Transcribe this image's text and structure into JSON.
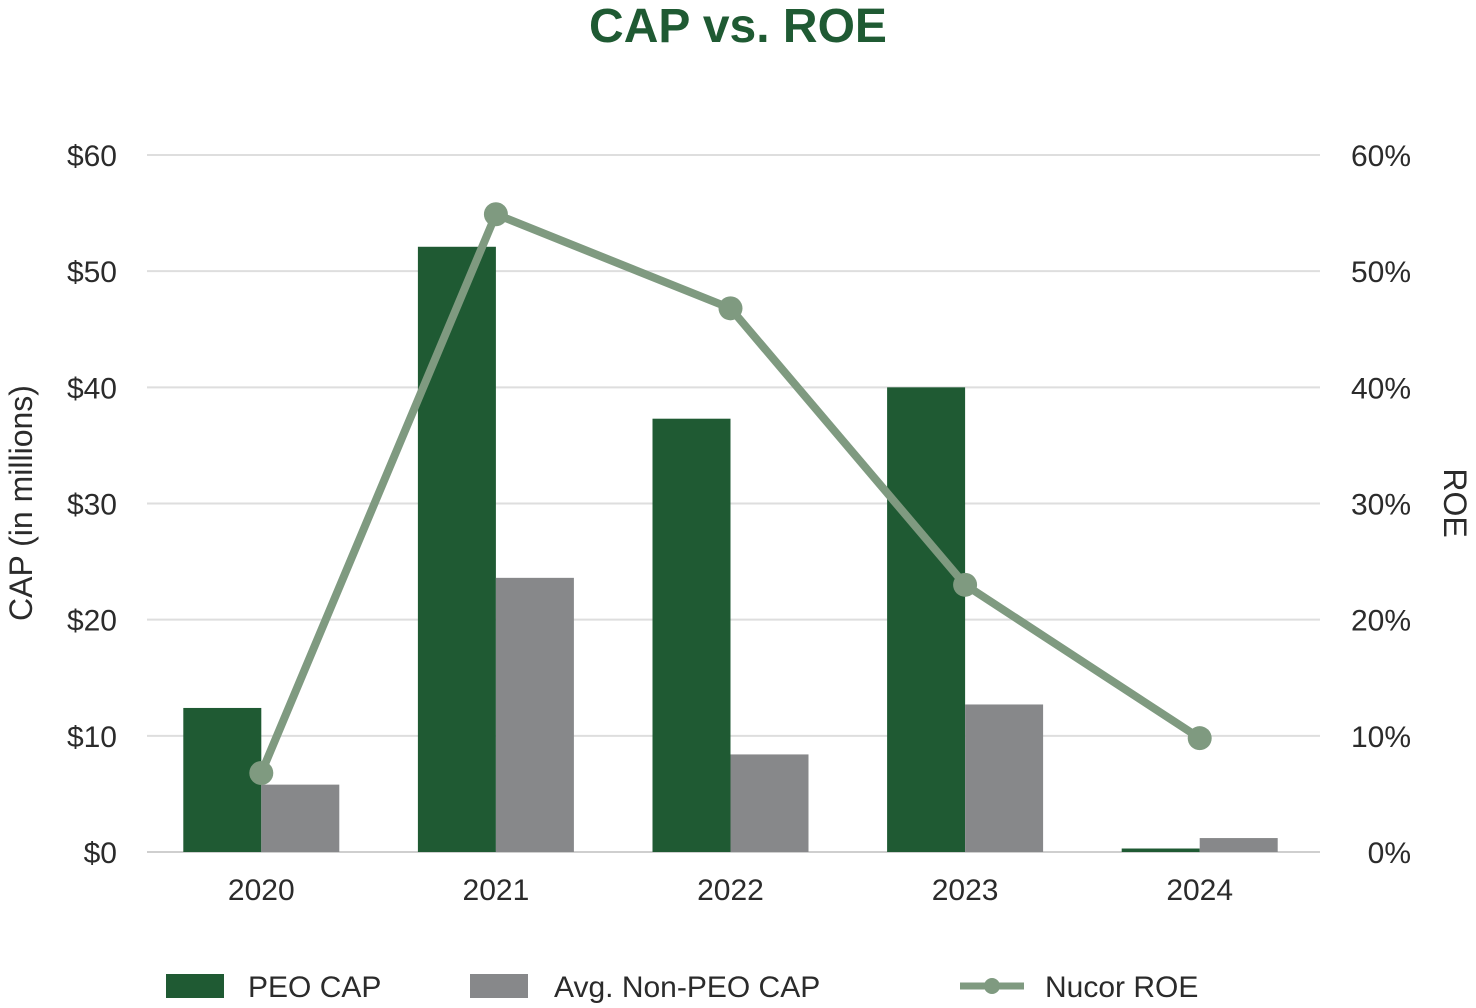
{
  "chart_data": {
    "type": "bar",
    "title": "CAP vs. ROE",
    "categories": [
      "2020",
      "2021",
      "2022",
      "2023",
      "2024"
    ],
    "ylabel": "CAP (in millions)",
    "y2label": "ROE",
    "ylim": [
      0,
      60
    ],
    "y2lim": [
      0,
      60
    ],
    "yticks": [
      "$0",
      "$10",
      "$20",
      "$30",
      "$40",
      "$50",
      "$60"
    ],
    "yticks_values": [
      0,
      10,
      20,
      30,
      40,
      50,
      60
    ],
    "y2ticks": [
      "0%",
      "10%",
      "20%",
      "30%",
      "40%",
      "50%",
      "60%"
    ],
    "y2ticks_values": [
      0,
      10,
      20,
      30,
      40,
      50,
      60
    ],
    "grid": true,
    "legend_position": "bottom",
    "series": [
      {
        "name": "PEO CAP",
        "kind": "bar",
        "axis": "left",
        "color": "#1f5a33",
        "values": [
          12.4,
          52.1,
          37.3,
          40.0,
          0.3
        ]
      },
      {
        "name": "Avg. Non-PEO CAP",
        "kind": "bar",
        "axis": "left",
        "color": "#87888a",
        "values": [
          5.8,
          23.6,
          8.4,
          12.7,
          1.2
        ]
      },
      {
        "name": "Nucor ROE",
        "kind": "line",
        "axis": "right",
        "color": "#7f9a80",
        "values": [
          6.8,
          54.9,
          46.8,
          23.0,
          9.8
        ]
      }
    ]
  }
}
